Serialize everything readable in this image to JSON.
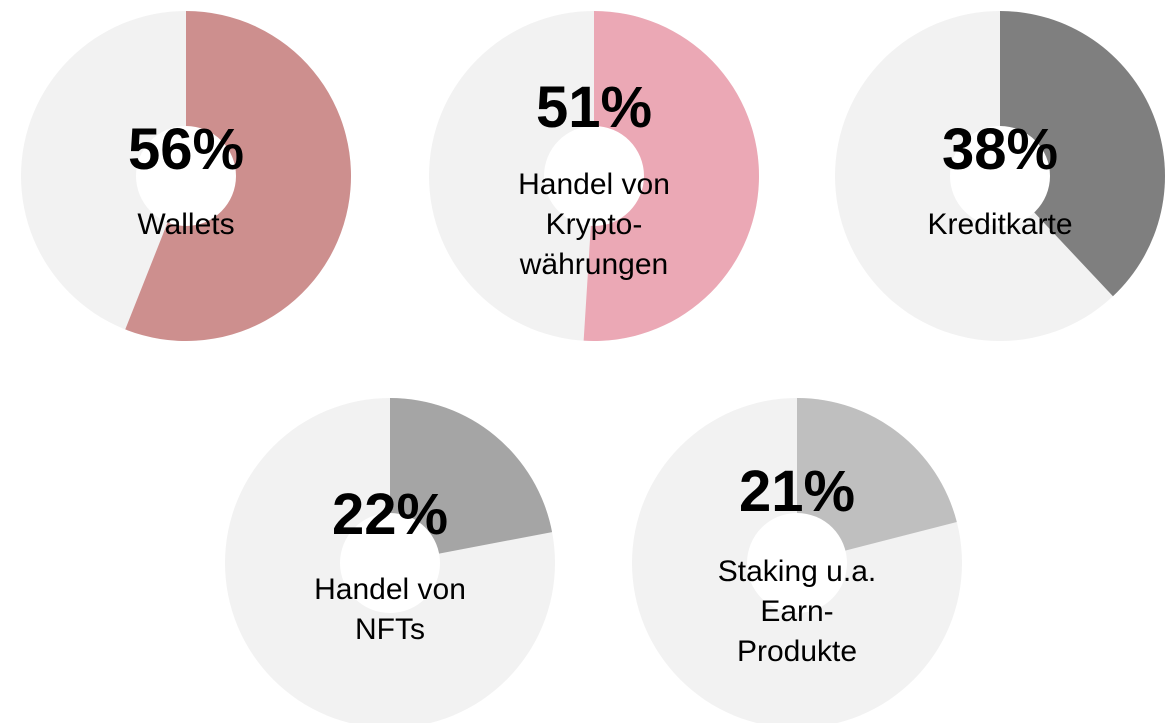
{
  "chart_data": [
    {
      "type": "pie",
      "categories": [
        "Wallets"
      ],
      "values": [
        56
      ],
      "value_labels": [
        "56%"
      ],
      "color": "#cd8f8e"
    },
    {
      "type": "pie",
      "categories": [
        "Handel von\nKrypto-\nwährungen"
      ],
      "values": [
        51
      ],
      "value_labels": [
        "51%"
      ],
      "color": "#eba8b5"
    },
    {
      "type": "pie",
      "categories": [
        "Kreditkarte"
      ],
      "values": [
        38
      ],
      "value_labels": [
        "38%"
      ],
      "color": "#7f7f7f"
    },
    {
      "type": "pie",
      "categories": [
        "Handel von\nNFTs"
      ],
      "values": [
        22
      ],
      "value_labels": [
        "22%"
      ],
      "color": "#a5a5a5"
    },
    {
      "type": "pie",
      "categories": [
        "Staking u.a.\nEarn-\nProdukte"
      ],
      "values": [
        21
      ],
      "value_labels": [
        "21%"
      ],
      "color": "#bfbfbf"
    }
  ]
}
